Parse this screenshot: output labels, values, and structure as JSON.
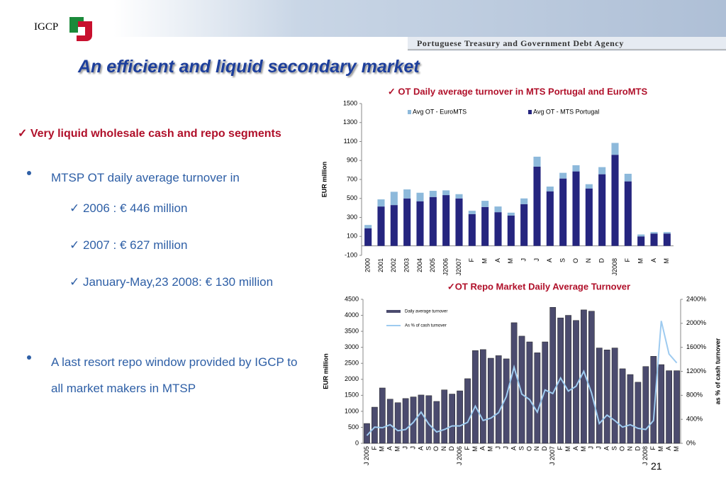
{
  "slide": {
    "logo": "IGCP",
    "agency": "Portuguese Treasury and Government Debt Agency",
    "title": "An efficient and liquid secondary market",
    "subtitle": "✓ Very liquid wholesale cash and repo segments",
    "bullets": [
      {
        "text": "MTSP OT daily average turnover in",
        "items": [
          "✓ 2006 : € 446 million",
          "✓ 2007 : € 627 million",
          "✓ January-May,23 2008: € 130 million"
        ]
      },
      {
        "text": "A last resort repo window provided by IGCP to all market makers in MTSP",
        "items": []
      }
    ],
    "page": "21"
  },
  "chart_data": [
    {
      "type": "stacked_bar",
      "title": "✓ OT Daily average turnover in MTS Portugal and EuroMTS",
      "ylabel": "EUR million",
      "categories": [
        "2000",
        "2001",
        "2002",
        "2003",
        "2004",
        "2005",
        "J2006",
        "J2007",
        "F",
        "M",
        "A",
        "M",
        "J",
        "J",
        "A",
        "S",
        "O",
        "N",
        "D",
        "J2008",
        "F",
        "M",
        "A",
        "M"
      ],
      "series": [
        {
          "name": "Avg OT - MTS Portugal",
          "color": "#25257f",
          "values": [
            185,
            415,
            430,
            500,
            470,
            515,
            535,
            500,
            335,
            410,
            355,
            320,
            440,
            835,
            575,
            710,
            785,
            605,
            755,
            960,
            680,
            100,
            130,
            130
          ]
        },
        {
          "name": "Avg OT - EuroMTS",
          "color": "#8db9db",
          "values": [
            35,
            75,
            140,
            95,
            90,
            65,
            50,
            45,
            35,
            65,
            60,
            30,
            60,
            105,
            50,
            60,
            65,
            45,
            75,
            125,
            80,
            20,
            15,
            15
          ]
        }
      ],
      "ylim": [
        -100,
        1500
      ],
      "yticks": [
        -100,
        100,
        300,
        500,
        700,
        900,
        1100,
        1300,
        1500
      ],
      "legend": "top"
    },
    {
      "type": "bar_line",
      "title": "✓OT Repo Market Daily Average Turnover",
      "ylabel": "EUR million",
      "y2label": "as % of cash turnover",
      "categories": [
        "J 2005",
        "F",
        "M",
        "A",
        "M",
        "J",
        "J",
        "A",
        "S",
        "O",
        "N",
        "D",
        "J 2006",
        "F",
        "M",
        "A",
        "M",
        "J",
        "J",
        "A",
        "S",
        "O",
        "N",
        "D",
        "J 2007",
        "F",
        "M",
        "A",
        "M",
        "J",
        "J",
        "A",
        "S",
        "O",
        "N",
        "D",
        "J 2008",
        "F",
        "M",
        "A",
        "M"
      ],
      "series": [
        {
          "name": "Daily average turnover",
          "color": "#4b4b6e",
          "values": [
            620,
            1130,
            1730,
            1380,
            1270,
            1400,
            1450,
            1510,
            1490,
            1310,
            1670,
            1540,
            1640,
            2020,
            2900,
            2930,
            2660,
            2740,
            2640,
            3770,
            3350,
            3170,
            2830,
            3170,
            4250,
            3920,
            4000,
            3840,
            4170,
            4130,
            2980,
            2920,
            2980,
            2330,
            2150,
            1910,
            2400,
            2720,
            2460,
            2270,
            2270
          ]
        },
        {
          "name": "As % of cash turnover",
          "color": "#9ecbf0",
          "axis": "y2",
          "values": [
            130,
            270,
            260,
            310,
            210,
            230,
            350,
            520,
            320,
            190,
            230,
            290,
            290,
            350,
            620,
            380,
            420,
            510,
            780,
            1270,
            820,
            730,
            520,
            890,
            830,
            1090,
            870,
            950,
            1200,
            840,
            330,
            470,
            380,
            270,
            310,
            250,
            230,
            380,
            2040,
            1490,
            1340
          ]
        }
      ],
      "ylim": [
        0,
        4500
      ],
      "yticks": [
        0,
        500,
        1000,
        1500,
        2000,
        2500,
        3000,
        3500,
        4000,
        4500
      ],
      "y2lim": [
        0,
        2400
      ],
      "y2ticks": [
        {
          "value": 0,
          "label": "0%"
        },
        {
          "value": 400,
          "label": "400%"
        },
        {
          "value": 800,
          "label": "800%"
        },
        {
          "value": 1200,
          "label": "1200%"
        },
        {
          "value": 1600,
          "label": "1600%"
        },
        {
          "value": 2000,
          "label": "2000%"
        },
        {
          "value": 2400,
          "label": "2400%"
        }
      ],
      "legend": "top-left"
    }
  ]
}
